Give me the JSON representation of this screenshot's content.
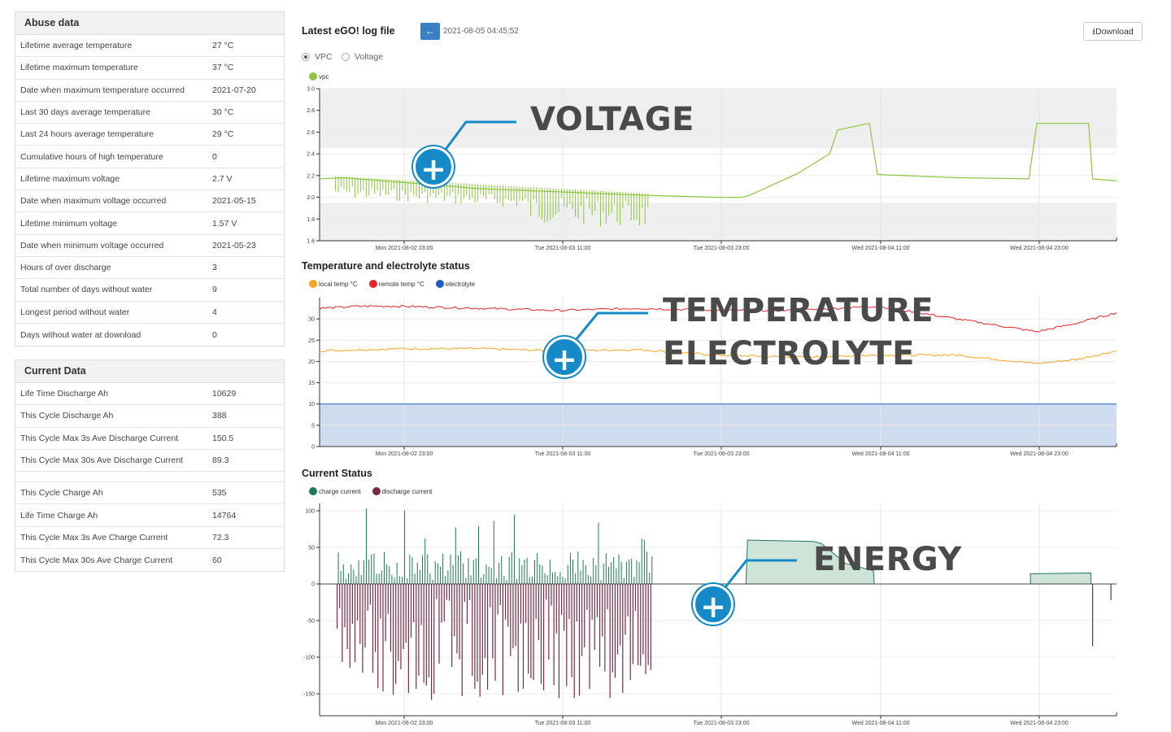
{
  "abuse": {
    "title": "Abuse data",
    "rows": [
      {
        "label": "Lifetime average temperature",
        "value": "27 °C"
      },
      {
        "label": "Lifetime maximum temperature",
        "value": "37 °C"
      },
      {
        "label": "Date when maximum temperature occurred",
        "value": "2021-07-20"
      },
      {
        "label": "Last 30 days average temperature",
        "value": "30 °C"
      },
      {
        "label": "Last 24 hours average temperature",
        "value": "29 °C"
      },
      {
        "label": "Cumulative hours of high temperature",
        "value": "0"
      },
      {
        "label": "Lifetime maximum voltage",
        "value": "2.7 V"
      },
      {
        "label": "Date when maximum voltage occurred",
        "value": "2021-05-15"
      },
      {
        "label": "Lifetime minimum voltage",
        "value": "1.57 V"
      },
      {
        "label": "Date when minimum voltage occurred",
        "value": "2021-05-23"
      },
      {
        "label": "Hours of over discharge",
        "value": "3"
      },
      {
        "label": "Total number of days without water",
        "value": "9"
      },
      {
        "label": "Longest period without water",
        "value": "4"
      },
      {
        "label": "Days without water at download",
        "value": "0"
      }
    ]
  },
  "current": {
    "title": "Current Data",
    "rows_a": [
      {
        "label": "Life Time Discharge Ah",
        "value": "10629"
      },
      {
        "label": "This Cycle Discharge Ah",
        "value": "388"
      },
      {
        "label": "This Cycle Max 3s Ave Discharge Current",
        "value": "150.5"
      },
      {
        "label": "This Cycle Max 30s Ave Discharge Current",
        "value": "89.3"
      }
    ],
    "rows_b": [
      {
        "label": "This Cycle Charge Ah",
        "value": "535"
      },
      {
        "label": "Life Time Charge Ah",
        "value": "14764"
      },
      {
        "label": "This Cycle Max 3s Ave Charge Current",
        "value": "72.3"
      },
      {
        "label": "This Cycle Max 30s Ave Charge Current",
        "value": "60"
      }
    ]
  },
  "header": {
    "title": "Latest eGO! log file",
    "timestamp": "2021-08-05 04:45:52",
    "download_label": "Download",
    "back_icon": "arrow-left-icon",
    "download_icon": "download-icon"
  },
  "mode": {
    "options": [
      "VPC",
      "Voltage"
    ],
    "selected": "VPC"
  },
  "callouts": {
    "voltage": "VOLTAGE",
    "temp1": "TEMPERATURE",
    "temp2": "ELECTROLYTE",
    "energy": "ENERGY"
  },
  "colors": {
    "accent": "#1689c8",
    "vpc": "#8dc63f",
    "local": "#f5a623",
    "remote": "#e8232a",
    "electrolyte": "#1f5fbf",
    "charge": "#1d7a52",
    "discharge": "#7a2a46"
  },
  "chart_data": [
    {
      "type": "line",
      "title": "",
      "series": [
        {
          "name": "vpc",
          "points": [
            [
              0,
              2.17
            ],
            [
              0.03,
              2.18
            ],
            [
              0.1,
              2.14
            ],
            [
              0.2,
              2.08
            ],
            [
              0.3,
              2.05
            ],
            [
              0.4,
              2.02
            ],
            [
              0.5,
              2.0
            ],
            [
              0.53,
              2.0
            ],
            [
              0.54,
              2.02
            ],
            [
              0.6,
              2.22
            ],
            [
              0.64,
              2.4
            ],
            [
              0.65,
              2.62
            ],
            [
              0.69,
              2.68
            ],
            [
              0.7,
              2.21
            ],
            [
              0.8,
              2.18
            ],
            [
              0.89,
              2.17
            ],
            [
              0.9,
              2.68
            ],
            [
              0.965,
              2.68
            ],
            [
              0.97,
              2.17
            ],
            [
              1.0,
              2.15
            ]
          ]
        }
      ],
      "x_ticks": [
        "Mon 2021-08-02 23:00",
        "Tue 2021-08-03 11:00",
        "Tue 2021-08-03 23:00",
        "Wed 2021-08-04 11:00",
        "Wed 2021-08-04 23:00"
      ],
      "ylim": [
        1.6,
        3.0
      ],
      "y_ticks": [
        "1.6",
        "1.8",
        "2.0",
        "2.2",
        "2.4",
        "2.6",
        "2.8",
        "3.0"
      ],
      "bands": [
        [
          2.45,
          3.0
        ],
        [
          1.6,
          1.95
        ]
      ]
    },
    {
      "type": "line",
      "title": "Temperature and electrolyte status",
      "series": [
        {
          "name": "local temp °C",
          "points": [
            [
              0,
              22.5
            ],
            [
              0.1,
              23
            ],
            [
              0.2,
              23
            ],
            [
              0.3,
              22.5
            ],
            [
              0.4,
              22.8
            ],
            [
              0.5,
              21.5
            ],
            [
              0.6,
              21
            ],
            [
              0.7,
              21.5
            ],
            [
              0.8,
              21.5
            ],
            [
              0.9,
              19.5
            ],
            [
              0.95,
              20.5
            ],
            [
              1.0,
              22.5
            ]
          ]
        },
        {
          "name": "remote temp °C",
          "points": [
            [
              0,
              32.5
            ],
            [
              0.05,
              33
            ],
            [
              0.1,
              33
            ],
            [
              0.2,
              32.5
            ],
            [
              0.3,
              32
            ],
            [
              0.4,
              32.5
            ],
            [
              0.5,
              32
            ],
            [
              0.6,
              32
            ],
            [
              0.7,
              33
            ],
            [
              0.8,
              30
            ],
            [
              0.9,
              27
            ],
            [
              0.95,
              29
            ],
            [
              1.0,
              31.5
            ]
          ]
        },
        {
          "name": "electrolyte",
          "points": [
            [
              0,
              10
            ],
            [
              1.0,
              10
            ]
          ]
        }
      ],
      "x_ticks": [
        "Mon 2021-08-02 23:00",
        "Tue 2021-08-03 11:00",
        "Tue 2021-08-03 23:00",
        "Wed 2021-08-04 11:00",
        "Wed 2021-08-04 23:00"
      ],
      "ylim": [
        0,
        35
      ],
      "y_ticks": [
        "0",
        "5",
        "10",
        "15",
        "20",
        "25",
        "30"
      ]
    },
    {
      "type": "area",
      "title": "Current Status",
      "series": [
        {
          "name": "charge current",
          "segments": [
            [
              0.537,
              0.557,
              0
            ],
            [
              0.537,
              0.62,
              60
            ],
            [
              0.62,
              0.69,
              55
            ],
            [
              0.69,
              0.696,
              18
            ],
            [
              0.892,
              0.968,
              14
            ]
          ]
        },
        {
          "name": "discharge current",
          "range": [
            0,
            0.418
          ]
        }
      ],
      "x_ticks": [
        "Mon 2021-08-02 23:00",
        "Tue 2021-08-03 11:00",
        "Tue 2021-08-03 23:00",
        "Wed 2021-08-04 11:00",
        "Wed 2021-08-04 23:00"
      ],
      "ylim": [
        -180,
        110
      ],
      "y_ticks": [
        "-150",
        "-100",
        "-50",
        "0",
        "50",
        "100"
      ]
    }
  ]
}
